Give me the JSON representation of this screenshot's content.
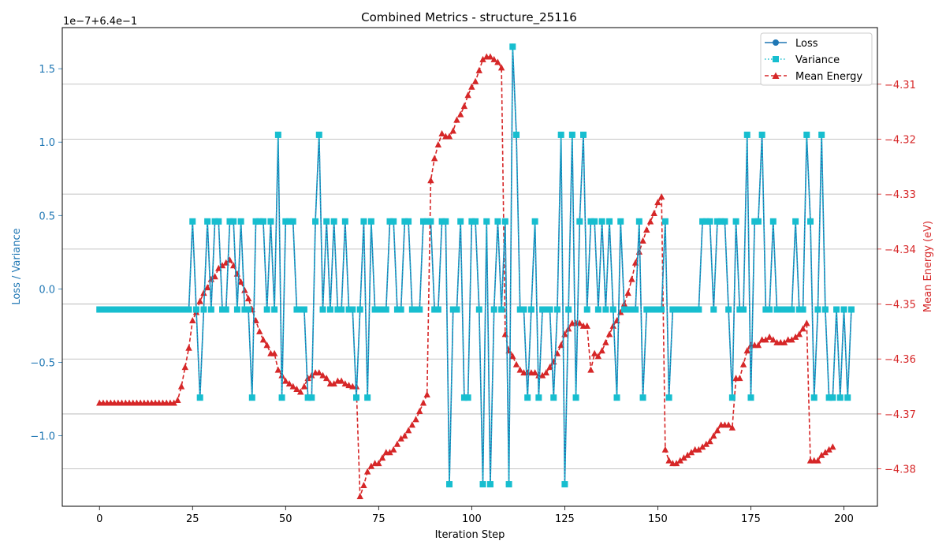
{
  "chart_data": {
    "type": "line",
    "title": "Combined Metrics - structure_25116",
    "xlabel": "Iteration Step",
    "ylabel_left": "Loss / Variance",
    "ylabel_right": "Mean Energy (eV)",
    "left_offset_label": "1e−7+6.4e−1",
    "colors": {
      "loss": "#1f77b4",
      "variance": "#17becf",
      "energy": "#d62728",
      "left_axis": "#1f77b4",
      "right_axis": "#d62728"
    },
    "xlim": [
      -10,
      209
    ],
    "ylim_left": [
      -1.48,
      1.78
    ],
    "ylim_right": [
      -4.3868,
      -4.2997
    ],
    "x_ticks": [
      0,
      25,
      50,
      75,
      100,
      125,
      150,
      175,
      200
    ],
    "y_left_ticks": [
      -1.0,
      -0.5,
      0.0,
      0.5,
      1.0,
      1.5
    ],
    "y_left_tick_labels": [
      "−1.0",
      "−0.5",
      "0.0",
      "0.5",
      "1.0",
      "1.5"
    ],
    "y_right_ticks": [
      -4.38,
      -4.37,
      -4.36,
      -4.35,
      -4.34,
      -4.33,
      -4.32,
      -4.31
    ],
    "y_right_tick_labels": [
      "−4.38",
      "−4.37",
      "−4.36",
      "−4.35",
      "−4.34",
      "−4.33",
      "−4.32",
      "−4.31"
    ],
    "grid": "horizontal lines at right-axis ticks",
    "legend_position": "top-right",
    "series": [
      {
        "name": "Loss",
        "axis": "left",
        "marker": "circle",
        "line": "solid"
      },
      {
        "name": "Variance",
        "axis": "left",
        "marker": "square",
        "line": "dotted"
      },
      {
        "name": "Mean Energy",
        "axis": "right",
        "marker": "triangle",
        "line": "dashed"
      }
    ],
    "loss_variance_values": [
      -0.14,
      -0.14,
      -0.14,
      -0.14,
      -0.14,
      -0.14,
      -0.14,
      -0.14,
      -0.14,
      -0.14,
      -0.14,
      -0.14,
      -0.14,
      -0.14,
      -0.14,
      -0.14,
      -0.14,
      -0.14,
      -0.14,
      -0.14,
      -0.14,
      -0.14,
      -0.14,
      -0.14,
      -0.14,
      0.46,
      -0.14,
      -0.74,
      -0.14,
      0.46,
      -0.14,
      0.46,
      0.46,
      -0.14,
      -0.14,
      0.46,
      0.46,
      -0.14,
      0.46,
      -0.14,
      -0.14,
      -0.74,
      0.46,
      0.46,
      0.46,
      -0.14,
      0.46,
      -0.14,
      1.05,
      -0.74,
      0.46,
      0.46,
      0.46,
      -0.14,
      -0.14,
      -0.14,
      -0.74,
      -0.74,
      0.46,
      1.05,
      -0.14,
      0.46,
      -0.14,
      0.46,
      -0.14,
      -0.14,
      0.46,
      -0.14,
      -0.14,
      -0.74,
      -0.14,
      0.46,
      -0.74,
      0.46,
      -0.14,
      -0.14,
      -0.14,
      -0.14,
      0.46,
      0.46,
      -0.14,
      -0.14,
      0.46,
      0.46,
      -0.14,
      -0.14,
      -0.14,
      0.46,
      0.46,
      0.46,
      -0.14,
      -0.14,
      0.46,
      0.46,
      -1.33,
      -0.14,
      -0.14,
      0.46,
      -0.74,
      -0.74,
      0.46,
      0.46,
      -0.14,
      -1.33,
      0.46,
      -1.33,
      -0.14,
      0.46,
      -0.14,
      0.46,
      -1.33,
      1.65,
      1.05,
      -0.14,
      -0.14,
      -0.74,
      -0.14,
      0.46,
      -0.74,
      -0.14,
      -0.14,
      -0.14,
      -0.74,
      -0.14,
      1.05,
      -1.33,
      -0.14,
      1.05,
      -0.74,
      0.46,
      1.05,
      -0.14,
      0.46,
      0.46,
      -0.14,
      0.46,
      -0.14,
      0.46,
      -0.14,
      -0.74,
      0.46,
      -0.14,
      -0.14,
      -0.14,
      -0.14,
      0.46,
      -0.74,
      -0.14,
      -0.14,
      -0.14,
      -0.14,
      -0.14,
      0.46,
      -0.74,
      -0.14,
      -0.14,
      -0.14,
      -0.14,
      -0.14,
      -0.14,
      -0.14,
      -0.14,
      0.46,
      0.46,
      0.46,
      -0.14,
      0.46,
      0.46,
      0.46,
      -0.14,
      -0.74,
      0.46,
      -0.14,
      -0.14,
      1.05,
      -0.74,
      0.46,
      0.46,
      1.05,
      -0.14,
      -0.14,
      0.46,
      -0.14,
      -0.14,
      -0.14,
      -0.14,
      -0.14,
      0.46,
      -0.14,
      -0.14,
      1.05,
      0.46,
      -0.74,
      -0.14,
      1.05,
      -0.14,
      -0.74,
      -0.74,
      -0.14,
      -0.74,
      -0.14,
      -0.74,
      -0.14
    ],
    "mean_energy_values": [
      -4.368,
      -4.368,
      -4.368,
      -4.368,
      -4.368,
      -4.368,
      -4.368,
      -4.368,
      -4.368,
      -4.368,
      -4.368,
      -4.368,
      -4.368,
      -4.368,
      -4.368,
      -4.368,
      -4.368,
      -4.368,
      -4.368,
      -4.368,
      -4.368,
      -4.3675,
      -4.365,
      -4.3615,
      -4.358,
      -4.353,
      -4.3515,
      -4.3495,
      -4.348,
      -4.347,
      -4.3455,
      -4.345,
      -4.3435,
      -4.343,
      -4.3425,
      -4.342,
      -4.343,
      -4.3445,
      -4.346,
      -4.3475,
      -4.349,
      -4.351,
      -4.353,
      -4.355,
      -4.3565,
      -4.3575,
      -4.359,
      -4.359,
      -4.362,
      -4.363,
      -4.364,
      -4.3645,
      -4.365,
      -4.3655,
      -4.366,
      -4.365,
      -4.3635,
      -4.363,
      -4.3625,
      -4.3625,
      -4.363,
      -4.3635,
      -4.3645,
      -4.3645,
      -4.364,
      -4.364,
      -4.3645,
      -4.3648,
      -4.365,
      -4.365,
      -4.385,
      -4.383,
      -4.3805,
      -4.3795,
      -4.379,
      -4.379,
      -4.378,
      -4.377,
      -4.377,
      -4.3765,
      -4.3755,
      -4.3745,
      -4.374,
      -4.373,
      -4.372,
      -4.371,
      -4.3695,
      -4.368,
      -4.3665,
      -4.3275,
      -4.3235,
      -4.321,
      -4.319,
      -4.3195,
      -4.3195,
      -4.3185,
      -4.3165,
      -4.3155,
      -4.314,
      -4.312,
      -4.3105,
      -4.3095,
      -4.3075,
      -4.3055,
      -4.305,
      -4.305,
      -4.3055,
      -4.306,
      -4.307,
      -4.3555,
      -4.3585,
      -4.3595,
      -4.361,
      -4.362,
      -4.3625,
      -4.3625,
      -4.3625,
      -4.3625,
      -4.363,
      -4.363,
      -4.3625,
      -4.3615,
      -4.3605,
      -4.359,
      -4.3575,
      -4.3555,
      -4.3545,
      -4.3535,
      -4.3535,
      -4.3535,
      -4.354,
      -4.354,
      -4.362,
      -4.359,
      -4.3595,
      -4.3585,
      -4.357,
      -4.3555,
      -4.354,
      -4.353,
      -4.3515,
      -4.35,
      -4.348,
      -4.3455,
      -4.3425,
      -4.3405,
      -4.3385,
      -4.3365,
      -4.335,
      -4.3335,
      -4.3315,
      -4.3305,
      -4.3765,
      -4.3785,
      -4.379,
      -4.379,
      -4.3785,
      -4.378,
      -4.3775,
      -4.377,
      -4.3765,
      -4.3765,
      -4.376,
      -4.3755,
      -4.375,
      -4.374,
      -4.373,
      -4.372,
      -4.372,
      -4.372,
      -4.3725,
      -4.3635,
      -4.3635,
      -4.361,
      -4.3585,
      -4.3575,
      -4.3575,
      -4.3575,
      -4.3565,
      -4.3565,
      -4.356,
      -4.3565,
      -4.357,
      -4.357,
      -4.357,
      -4.3565,
      -4.3565,
      -4.356,
      -4.3555,
      -4.3545,
      -4.3535,
      -4.3785,
      -4.3785,
      -4.3785,
      -4.3775,
      -4.377,
      -4.3765,
      -4.376
    ]
  }
}
